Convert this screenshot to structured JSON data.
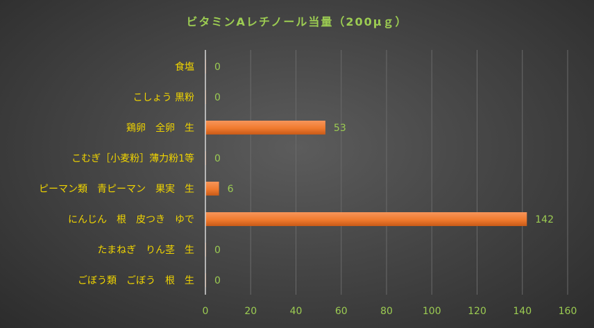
{
  "chart_data": {
    "type": "bar",
    "orientation": "horizontal",
    "title": "ビタミンAレチノール当量（200μｇ）",
    "categories": [
      "食塩",
      "こしょう 黒粉",
      "鶏卵　全卵　生",
      "こむぎ［小麦粉］薄力粉1等",
      "ピーマン類　青ピーマン　果実　生",
      "にんじん　根　皮つき　ゆで",
      "たまねぎ　りん茎　生",
      "ごぼう類　ごぼう　根　生"
    ],
    "values": [
      0,
      0,
      53,
      0,
      6,
      142,
      0,
      0
    ],
    "xlim": [
      0,
      160
    ],
    "xticks": [
      0,
      20,
      40,
      60,
      80,
      100,
      120,
      140,
      160
    ],
    "grid": true,
    "legend": "none",
    "colors": {
      "bar": "#f07a2e",
      "bar_dark": "#c85a18",
      "category_text": "#f0d400",
      "value_text": "#9ccc52",
      "gridline": "#6a6a6a",
      "axis": "#d9d9d9"
    }
  }
}
